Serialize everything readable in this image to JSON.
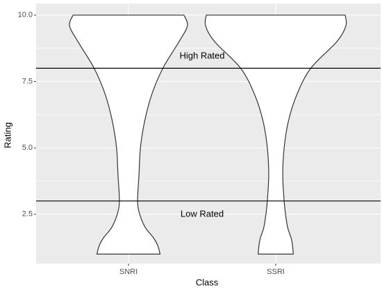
{
  "chart_data": {
    "type": "violin",
    "categories": [
      "SNRI",
      "SSRI"
    ],
    "violins": [
      {
        "y": [
          1,
          1.3,
          1.6,
          2,
          2.5,
          3,
          4,
          5,
          6,
          7,
          8,
          9,
          9.6,
          10
        ],
        "density": [
          0.45,
          0.42,
          0.36,
          0.24,
          0.16,
          0.13,
          0.15,
          0.17,
          0.23,
          0.33,
          0.49,
          0.72,
          0.84,
          0.79
        ]
      },
      {
        "y": [
          1,
          1.3,
          1.6,
          2,
          2.5,
          3,
          4,
          5,
          6,
          7,
          8,
          9,
          9.6,
          10
        ],
        "density": [
          0.25,
          0.24,
          0.22,
          0.17,
          0.14,
          0.12,
          0.1,
          0.12,
          0.18,
          0.3,
          0.5,
          0.87,
          1,
          0.99
        ]
      }
    ],
    "hlines": [
      8,
      3
    ],
    "annotations": [
      {
        "text": "High Rated",
        "x": 1.5,
        "y": 8.45
      },
      {
        "text": "Low Rated",
        "x": 1.5,
        "y": 2.5
      }
    ],
    "xlabel": "Class",
    "ylabel": "Rating",
    "ylim": [
      0.64,
      10.44
    ],
    "yticks": [
      2.5,
      {
        "value": 5,
        "label": "5.0"
      },
      7.5,
      {
        "value": 10,
        "label": "10.0"
      }
    ],
    "grid": true
  }
}
